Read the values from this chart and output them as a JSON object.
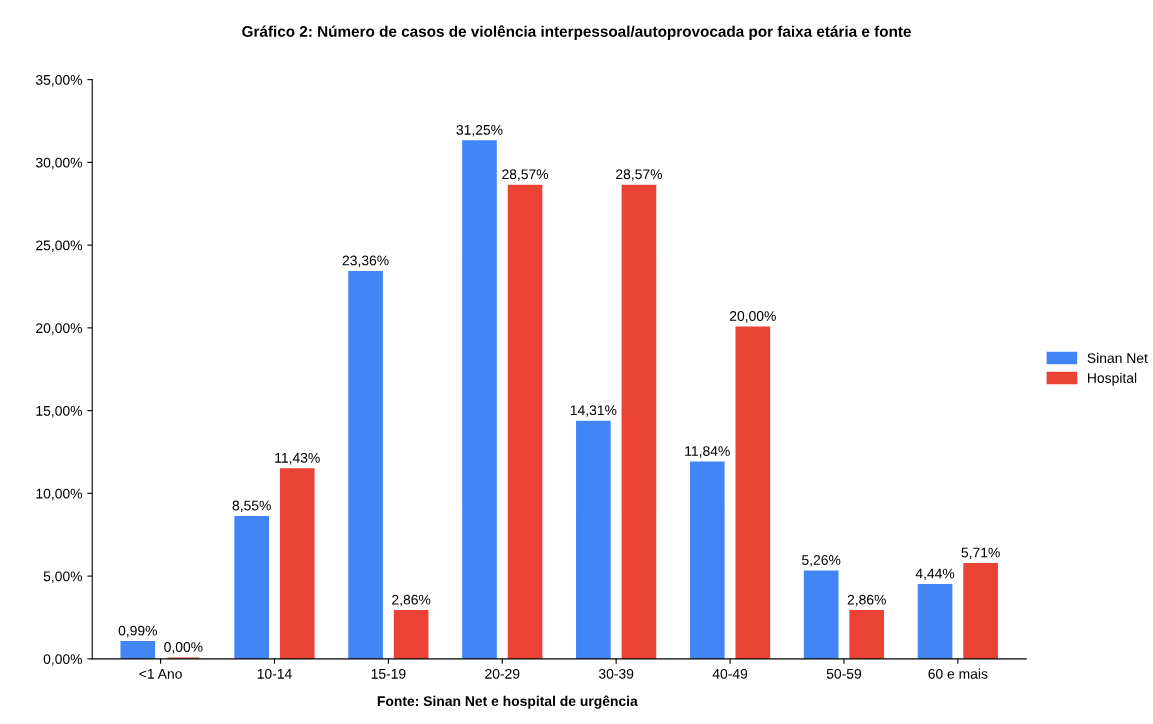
{
  "chart_data": {
    "type": "bar",
    "title": "Gráfico 2: Número de casos de violência interpessoal/autoprovocada por faixa etária e fonte",
    "categories": [
      "<1 Ano",
      "10-14",
      "15-19",
      "20-29",
      "30-39",
      "40-49",
      "50-59",
      "60 e mais"
    ],
    "series": [
      {
        "name": "Sinan Net",
        "color": "#4285f4",
        "values": [
          0.99,
          8.55,
          23.36,
          31.25,
          14.31,
          11.84,
          5.26,
          4.44
        ],
        "value_labels": [
          "0,99%",
          "8,55%",
          "23,36%",
          "31,25%",
          "14,31%",
          "11,84%",
          "5,26%",
          "4,44%"
        ]
      },
      {
        "name": "Hospital",
        "color": "#ea4335",
        "values": [
          0.0,
          11.43,
          2.86,
          28.57,
          28.57,
          20.0,
          2.86,
          5.71
        ],
        "value_labels": [
          "0,00%",
          "11,43%",
          "2,86%",
          "28,57%",
          "28,57%",
          "20,00%",
          "2,86%",
          "5,71%"
        ]
      }
    ],
    "ylim": [
      0,
      35
    ],
    "yticks": [
      {
        "value": 0,
        "label": "0,00%"
      },
      {
        "value": 5,
        "label": "5,00%"
      },
      {
        "value": 10,
        "label": "10,00%"
      },
      {
        "value": 15,
        "label": "15,00%"
      },
      {
        "value": 20,
        "label": "20,00%"
      },
      {
        "value": 25,
        "label": "25,00%"
      },
      {
        "value": 30,
        "label": "30,00%"
      },
      {
        "value": 35,
        "label": "35,00%"
      }
    ],
    "grid": false,
    "legend": "right",
    "annotations": [
      "Fonte: Sinan Net e hospital de urgência"
    ]
  }
}
